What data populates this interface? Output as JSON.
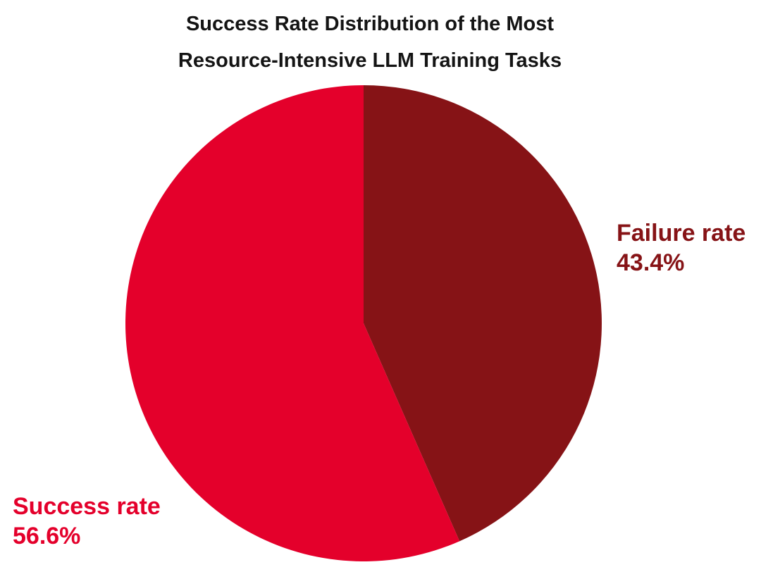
{
  "chart_data": {
    "type": "pie",
    "title_lines": [
      "Success Rate Distribution of the Most",
      "Resource-Intensive LLM Training Tasks"
    ],
    "slices": [
      {
        "name": "Failure rate",
        "value": 43.4,
        "label": "43.4%",
        "color": "#861316"
      },
      {
        "name": "Success rate",
        "value": 56.6,
        "label": "56.6%",
        "color": "#E4002B"
      }
    ],
    "start_angle": "12 o'clock",
    "direction": "clockwise",
    "legend": "none"
  }
}
